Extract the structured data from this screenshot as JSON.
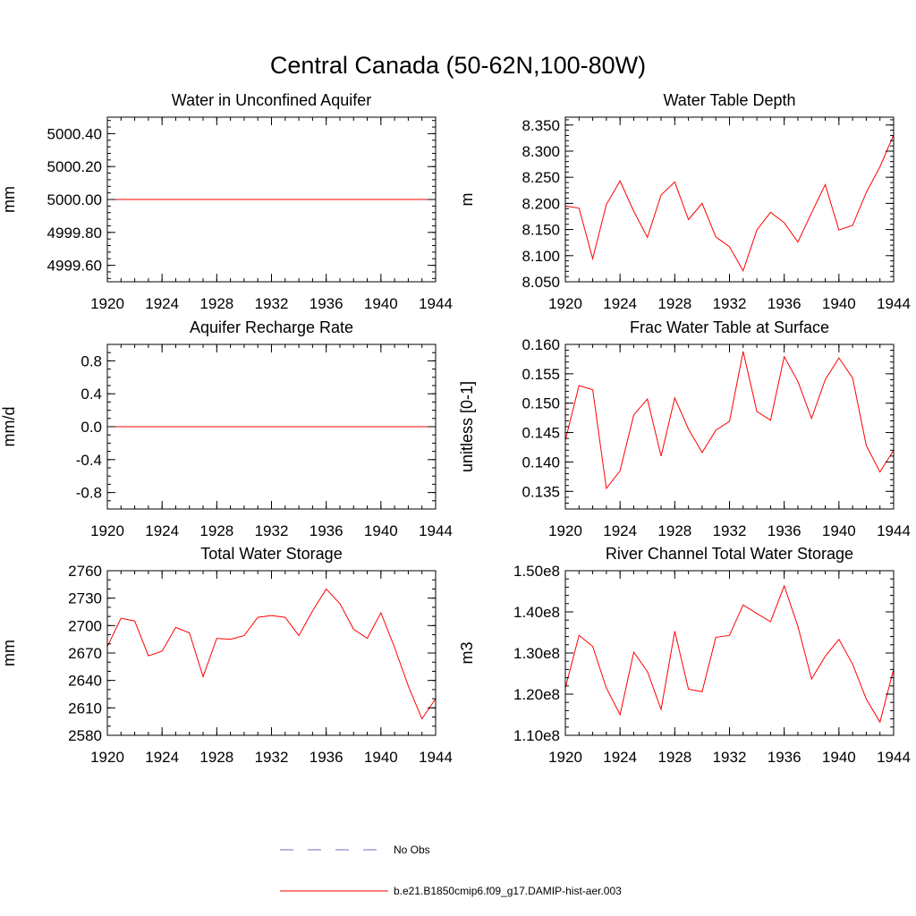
{
  "figure": {
    "title": "Central Canada (50-62N,100-80W)",
    "legend": [
      {
        "label": "No Obs",
        "color": "#6e6ec8",
        "dashed": true
      },
      {
        "label": "b.e21.B1850cmip6.f09_g17.DAMIP-hist-aer.003",
        "color": "#ff0000",
        "dashed": false
      }
    ],
    "legend_position": "bottom-center"
  },
  "chart_data": [
    {
      "type": "line",
      "title": "Water in Unconfined Aquifer",
      "ylabel": "mm",
      "xlim": [
        1920,
        1944
      ],
      "ylim": [
        4999.5,
        5000.5
      ],
      "xticks": [
        1920,
        1924,
        1928,
        1932,
        1936,
        1940,
        1944
      ],
      "xtick_labels": [
        "1920",
        "1924",
        "1928",
        "1932",
        "1936",
        "1940",
        "1944"
      ],
      "yticks": [
        4999.6,
        4999.8,
        5000.0,
        5000.2,
        5000.4
      ],
      "ytick_labels": [
        "4999.60",
        "4999.80",
        "5000.00",
        "5000.20",
        "5000.40"
      ],
      "yminor_step": 0.04,
      "x": [
        1920,
        1921,
        1922,
        1923,
        1924,
        1925,
        1926,
        1927,
        1928,
        1929,
        1930,
        1931,
        1932,
        1933,
        1934,
        1935,
        1936,
        1937,
        1938,
        1939,
        1940,
        1941,
        1942,
        1943,
        1944
      ],
      "series": [
        {
          "color": "#ff0000",
          "values": [
            5000,
            5000,
            5000,
            5000,
            5000,
            5000,
            5000,
            5000,
            5000,
            5000,
            5000,
            5000,
            5000,
            5000,
            5000,
            5000,
            5000,
            5000,
            5000,
            5000,
            5000,
            5000,
            5000,
            5000,
            5000
          ]
        }
      ]
    },
    {
      "type": "line",
      "title": "Water Table Depth",
      "ylabel": "m",
      "xlim": [
        1920,
        1944
      ],
      "ylim": [
        8.05,
        8.365
      ],
      "xticks": [
        1920,
        1924,
        1928,
        1932,
        1936,
        1940,
        1944
      ],
      "xtick_labels": [
        "1920",
        "1924",
        "1928",
        "1932",
        "1936",
        "1940",
        "1944"
      ],
      "yticks": [
        8.05,
        8.1,
        8.15,
        8.2,
        8.25,
        8.3,
        8.35
      ],
      "ytick_labels": [
        "8.050",
        "8.100",
        "8.150",
        "8.200",
        "8.250",
        "8.300",
        "8.350"
      ],
      "yminor_step": 0.01,
      "x": [
        1920,
        1921,
        1922,
        1923,
        1924,
        1925,
        1926,
        1927,
        1928,
        1929,
        1930,
        1931,
        1932,
        1933,
        1934,
        1935,
        1936,
        1937,
        1938,
        1939,
        1940,
        1941,
        1942,
        1943,
        1944
      ],
      "series": [
        {
          "color": "#ff0000",
          "values": [
            8.195,
            8.191,
            8.094,
            8.198,
            8.243,
            8.185,
            8.135,
            8.216,
            8.241,
            8.169,
            8.2,
            8.136,
            8.117,
            8.071,
            8.149,
            8.183,
            8.163,
            8.126,
            8.182,
            8.236,
            8.149,
            8.158,
            8.221,
            8.27,
            8.331
          ]
        }
      ]
    },
    {
      "type": "line",
      "title": "Aquifer Recharge Rate",
      "ylabel": "mm/d",
      "xlim": [
        1920,
        1944
      ],
      "ylim": [
        -1.0,
        1.0
      ],
      "xticks": [
        1920,
        1924,
        1928,
        1932,
        1936,
        1940,
        1944
      ],
      "xtick_labels": [
        "1920",
        "1924",
        "1928",
        "1932",
        "1936",
        "1940",
        "1944"
      ],
      "yticks": [
        -0.8,
        -0.4,
        0.0,
        0.4,
        0.8
      ],
      "ytick_labels": [
        "-0.8",
        "-0.4",
        "0.0",
        "0.4",
        "0.8"
      ],
      "yminor_step": 0.1,
      "x": [
        1920,
        1921,
        1922,
        1923,
        1924,
        1925,
        1926,
        1927,
        1928,
        1929,
        1930,
        1931,
        1932,
        1933,
        1934,
        1935,
        1936,
        1937,
        1938,
        1939,
        1940,
        1941,
        1942,
        1943,
        1944
      ],
      "series": [
        {
          "color": "#ff0000",
          "values": [
            0,
            0,
            0,
            0,
            0,
            0,
            0,
            0,
            0,
            0,
            0,
            0,
            0,
            0,
            0,
            0,
            0,
            0,
            0,
            0,
            0,
            0,
            0,
            0,
            0
          ]
        }
      ]
    },
    {
      "type": "line",
      "title": "Frac Water Table at Surface",
      "ylabel": "unitless [0-1]",
      "xlim": [
        1920,
        1944
      ],
      "ylim": [
        0.132,
        0.16
      ],
      "xticks": [
        1920,
        1924,
        1928,
        1932,
        1936,
        1940,
        1944
      ],
      "xtick_labels": [
        "1920",
        "1924",
        "1928",
        "1932",
        "1936",
        "1940",
        "1944"
      ],
      "yticks": [
        0.135,
        0.14,
        0.145,
        0.15,
        0.155,
        0.16
      ],
      "ytick_labels": [
        "0.135",
        "0.140",
        "0.145",
        "0.150",
        "0.155",
        "0.160"
      ],
      "yminor_step": 0.001,
      "x": [
        1920,
        1921,
        1922,
        1923,
        1924,
        1925,
        1926,
        1927,
        1928,
        1929,
        1930,
        1931,
        1932,
        1933,
        1934,
        1935,
        1936,
        1937,
        1938,
        1939,
        1940,
        1941,
        1942,
        1943,
        1944
      ],
      "series": [
        {
          "color": "#ff0000",
          "values": [
            0.1437,
            0.153,
            0.1523,
            0.1355,
            0.1385,
            0.148,
            0.1507,
            0.141,
            0.1509,
            0.1456,
            0.1416,
            0.1454,
            0.1469,
            0.1588,
            0.1486,
            0.1471,
            0.1579,
            0.1537,
            0.1474,
            0.154,
            0.1577,
            0.1543,
            0.1428,
            0.1383,
            0.142
          ]
        }
      ]
    },
    {
      "type": "line",
      "title": "Total Water Storage",
      "ylabel": "mm",
      "xlim": [
        1920,
        1944
      ],
      "ylim": [
        2580,
        2760
      ],
      "xticks": [
        1920,
        1924,
        1928,
        1932,
        1936,
        1940,
        1944
      ],
      "xtick_labels": [
        "1920",
        "1924",
        "1928",
        "1932",
        "1936",
        "1940",
        "1944"
      ],
      "yticks": [
        2580,
        2610,
        2640,
        2670,
        2700,
        2730,
        2760
      ],
      "ytick_labels": [
        "2580",
        "2610",
        "2640",
        "2670",
        "2700",
        "2730",
        "2760"
      ],
      "yminor_step": 10,
      "x": [
        1920,
        1921,
        1922,
        1923,
        1924,
        1925,
        1926,
        1927,
        1928,
        1929,
        1930,
        1931,
        1932,
        1933,
        1934,
        1935,
        1936,
        1937,
        1938,
        1939,
        1940,
        1941,
        1942,
        1943,
        1944
      ],
      "series": [
        {
          "color": "#ff0000",
          "values": [
            2677,
            2708,
            2705,
            2667,
            2672,
            2698,
            2692,
            2644,
            2686,
            2685,
            2689,
            2709,
            2711,
            2709,
            2689,
            2716,
            2740,
            2724,
            2696,
            2686,
            2714,
            2676,
            2634,
            2598,
            2620
          ]
        }
      ]
    },
    {
      "type": "line",
      "title": "River Channel Total Water Storage",
      "ylabel": "m3",
      "xlim": [
        1920,
        1944
      ],
      "ylim": [
        110000000,
        150000000
      ],
      "xticks": [
        1920,
        1924,
        1928,
        1932,
        1936,
        1940,
        1944
      ],
      "xtick_labels": [
        "1920",
        "1924",
        "1928",
        "1932",
        "1936",
        "1940",
        "1944"
      ],
      "yticks": [
        110000000,
        120000000,
        130000000,
        140000000,
        150000000
      ],
      "ytick_labels": [
        "1.10e8",
        "1.20e8",
        "1.30e8",
        "1.40e8",
        "1.50e8"
      ],
      "yminor_step": 2000000,
      "x": [
        1920,
        1921,
        1922,
        1923,
        1924,
        1925,
        1926,
        1927,
        1928,
        1929,
        1930,
        1931,
        1932,
        1933,
        1934,
        1935,
        1936,
        1937,
        1938,
        1939,
        1940,
        1941,
        1942,
        1943,
        1944
      ],
      "series": [
        {
          "color": "#ff0000",
          "values": [
            121500000,
            134300000,
            131600000,
            121500000,
            115000000,
            130200000,
            125500000,
            116300000,
            135300000,
            121200000,
            120600000,
            133800000,
            134300000,
            141700000,
            139600000,
            137600000,
            146300000,
            136500000,
            123700000,
            129200000,
            133300000,
            127300000,
            118800000,
            113200000,
            126100000
          ]
        }
      ]
    }
  ]
}
